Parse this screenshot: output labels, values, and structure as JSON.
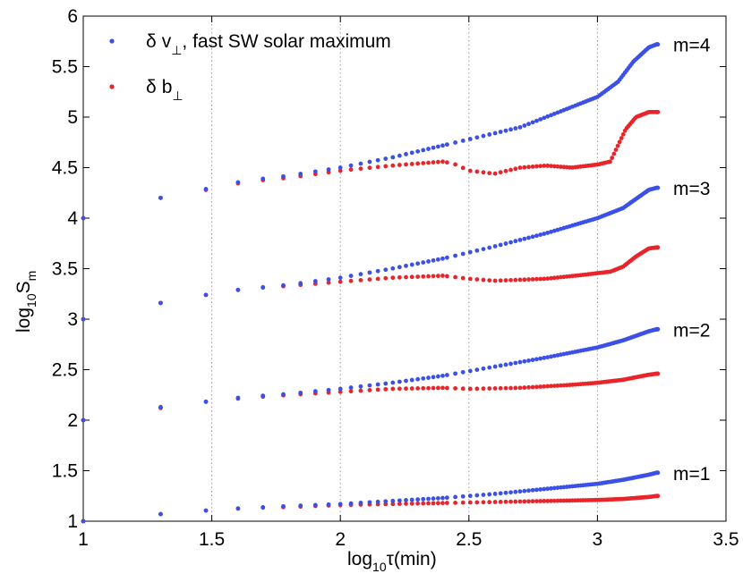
{
  "chart_data": {
    "type": "scatter",
    "title": "",
    "xlabel_prefix": "log",
    "xlabel_sub": "10",
    "xlabel_tau": "τ",
    "xlabel_unit": "(min)",
    "ylabel_prefix": "log",
    "ylabel_sub": "10",
    "ylabel_S": "S",
    "ylabel_m": "m",
    "xlim": [
      1,
      3.5
    ],
    "ylim": [
      1,
      6
    ],
    "xticks": [
      1,
      1.5,
      2,
      2.5,
      3,
      3.5
    ],
    "xtick_labels": [
      "1",
      "1.5",
      "2",
      "2.5",
      "3",
      "3.5"
    ],
    "yticks": [
      1,
      1.5,
      2,
      2.5,
      3,
      3.5,
      4,
      4.5,
      5,
      5.5,
      6
    ],
    "ytick_labels": [
      "1",
      "1.5",
      "2",
      "2.5",
      "3",
      "3.5",
      "4",
      "4.5",
      "5",
      "5.5",
      "6"
    ],
    "grid_x": true,
    "legend": [
      {
        "name": "δ v⊥, fast SW solar maximum",
        "delta": "δ",
        "var": "v",
        "sub": "⊥",
        "rest": ", fast SW solar maximum",
        "color": "#3a50e6"
      },
      {
        "name": "δ b⊥",
        "delta": "δ",
        "var": "b",
        "sub": "⊥",
        "rest": "",
        "color": "#e8252a"
      }
    ],
    "legend_position": "top-left",
    "annotations": [
      {
        "text": "m=4",
        "y": 5.72
      },
      {
        "text": "m=3",
        "y": 4.3
      },
      {
        "text": "m=2",
        "y": 2.9
      },
      {
        "text": "m=1",
        "y": 1.48
      }
    ],
    "orders": [
      {
        "m": 4,
        "v": [
          [
            1.0,
            4.0
          ],
          [
            1.3,
            4.2
          ],
          [
            1.5,
            4.3
          ],
          [
            1.63,
            4.37
          ],
          [
            1.8,
            4.42
          ],
          [
            2.0,
            4.5
          ],
          [
            2.2,
            4.6
          ],
          [
            2.5,
            4.78
          ],
          [
            2.7,
            4.9
          ],
          [
            2.85,
            5.05
          ],
          [
            3.0,
            5.2
          ],
          [
            3.08,
            5.35
          ],
          [
            3.14,
            5.55
          ],
          [
            3.2,
            5.69
          ],
          [
            3.23,
            5.72
          ]
        ],
        "b": [
          [
            1.0,
            4.0
          ],
          [
            1.3,
            4.2
          ],
          [
            1.5,
            4.29
          ],
          [
            1.63,
            4.36
          ],
          [
            1.8,
            4.4
          ],
          [
            2.0,
            4.47
          ],
          [
            2.2,
            4.52
          ],
          [
            2.4,
            4.56
          ],
          [
            2.45,
            4.53
          ],
          [
            2.5,
            4.47
          ],
          [
            2.6,
            4.44
          ],
          [
            2.7,
            4.5
          ],
          [
            2.8,
            4.52
          ],
          [
            2.9,
            4.5
          ],
          [
            3.0,
            4.53
          ],
          [
            3.05,
            4.56
          ],
          [
            3.08,
            4.72
          ],
          [
            3.11,
            4.88
          ],
          [
            3.15,
            5.0
          ],
          [
            3.2,
            5.05
          ],
          [
            3.23,
            5.05
          ]
        ]
      },
      {
        "m": 3,
        "v": [
          [
            1.0,
            3.0
          ],
          [
            1.3,
            3.16
          ],
          [
            1.5,
            3.25
          ],
          [
            1.63,
            3.3
          ],
          [
            1.8,
            3.34
          ],
          [
            2.0,
            3.41
          ],
          [
            2.2,
            3.5
          ],
          [
            2.4,
            3.6
          ],
          [
            2.6,
            3.72
          ],
          [
            2.8,
            3.85
          ],
          [
            3.0,
            4.0
          ],
          [
            3.1,
            4.1
          ],
          [
            3.2,
            4.28
          ],
          [
            3.23,
            4.3
          ]
        ],
        "b": [
          [
            1.0,
            3.0
          ],
          [
            1.3,
            3.16
          ],
          [
            1.5,
            3.25
          ],
          [
            1.63,
            3.3
          ],
          [
            1.8,
            3.33
          ],
          [
            2.0,
            3.37
          ],
          [
            2.2,
            3.41
          ],
          [
            2.4,
            3.43
          ],
          [
            2.5,
            3.4
          ],
          [
            2.6,
            3.38
          ],
          [
            2.8,
            3.4
          ],
          [
            2.95,
            3.44
          ],
          [
            3.05,
            3.47
          ],
          [
            3.1,
            3.52
          ],
          [
            3.15,
            3.62
          ],
          [
            3.2,
            3.7
          ],
          [
            3.23,
            3.71
          ]
        ]
      },
      {
        "m": 2,
        "v": [
          [
            1.0,
            2.0
          ],
          [
            1.3,
            2.13
          ],
          [
            1.5,
            2.19
          ],
          [
            1.63,
            2.23
          ],
          [
            1.8,
            2.26
          ],
          [
            2.0,
            2.31
          ],
          [
            2.2,
            2.37
          ],
          [
            2.4,
            2.44
          ],
          [
            2.6,
            2.53
          ],
          [
            2.8,
            2.62
          ],
          [
            3.0,
            2.72
          ],
          [
            3.1,
            2.79
          ],
          [
            3.2,
            2.88
          ],
          [
            3.23,
            2.9
          ]
        ],
        "b": [
          [
            1.0,
            2.0
          ],
          [
            1.3,
            2.12
          ],
          [
            1.5,
            2.19
          ],
          [
            1.63,
            2.22
          ],
          [
            1.8,
            2.25
          ],
          [
            2.0,
            2.28
          ],
          [
            2.2,
            2.31
          ],
          [
            2.4,
            2.32
          ],
          [
            2.5,
            2.31
          ],
          [
            2.7,
            2.32
          ],
          [
            2.9,
            2.35
          ],
          [
            3.0,
            2.37
          ],
          [
            3.1,
            2.4
          ],
          [
            3.2,
            2.45
          ],
          [
            3.23,
            2.46
          ]
        ]
      },
      {
        "m": 1,
        "v": [
          [
            1.0,
            1.0
          ],
          [
            1.3,
            1.07
          ],
          [
            1.5,
            1.11
          ],
          [
            1.63,
            1.13
          ],
          [
            1.8,
            1.15
          ],
          [
            2.0,
            1.17
          ],
          [
            2.2,
            1.2
          ],
          [
            2.4,
            1.23
          ],
          [
            2.6,
            1.27
          ],
          [
            2.8,
            1.32
          ],
          [
            3.0,
            1.37
          ],
          [
            3.1,
            1.41
          ],
          [
            3.2,
            1.46
          ],
          [
            3.23,
            1.48
          ]
        ],
        "b": [
          [
            1.0,
            1.0
          ],
          [
            1.3,
            1.07
          ],
          [
            1.5,
            1.11
          ],
          [
            1.63,
            1.13
          ],
          [
            1.8,
            1.14
          ],
          [
            2.0,
            1.16
          ],
          [
            2.2,
            1.17
          ],
          [
            2.4,
            1.18
          ],
          [
            2.6,
            1.19
          ],
          [
            2.8,
            1.2
          ],
          [
            3.0,
            1.21
          ],
          [
            3.1,
            1.22
          ],
          [
            3.2,
            1.24
          ],
          [
            3.23,
            1.25
          ]
        ]
      }
    ]
  }
}
